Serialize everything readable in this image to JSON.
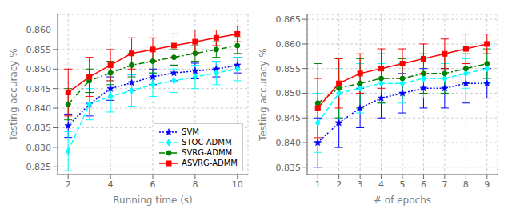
{
  "chart_data": [
    {
      "type": "line",
      "xlabel": "Running time (s)",
      "ylabel": "Testing accuracy %",
      "xlim": [
        1.5,
        10.5
      ],
      "ylim": [
        0.823,
        0.864
      ],
      "xticks": [
        2,
        4,
        6,
        8,
        10
      ],
      "yticks": [
        0.825,
        {
          "value": 0.83,
          "label": "0.830"
        },
        0.835,
        {
          "value": 0.84,
          "label": "0.840"
        },
        0.845,
        {
          "value": 0.85,
          "label": "0.850"
        },
        0.855,
        {
          "value": 0.86,
          "label": "0.860"
        }
      ],
      "grid": true,
      "legend": "lower right",
      "x": [
        2,
        3,
        4,
        5,
        6,
        7,
        8,
        9,
        10
      ],
      "series": [
        {
          "name": "SVM",
          "color": "blue",
          "line_style": "dotted",
          "marker": "star",
          "values": [
            0.8355,
            0.841,
            0.845,
            0.8465,
            0.848,
            0.849,
            0.8495,
            0.85,
            0.851
          ],
          "yerr": [
            0.003,
            0.003,
            0.003,
            0.002,
            0.002,
            0.002,
            0.002,
            0.002,
            0.002
          ]
        },
        {
          "name": "STOC-ADMM",
          "color": "cyan",
          "line_style": "dashed",
          "marker": "diamond",
          "values": [
            0.829,
            0.841,
            0.843,
            0.8445,
            0.846,
            0.847,
            0.848,
            0.849,
            0.85
          ],
          "yerr": [
            0.005,
            0.004,
            0.004,
            0.004,
            0.003,
            0.003,
            0.003,
            0.003,
            0.003
          ]
        },
        {
          "name": "SVRG-ADMM",
          "color": "green",
          "line_style": "dashdot",
          "marker": "circle",
          "values": [
            0.841,
            0.847,
            0.849,
            0.851,
            0.852,
            0.853,
            0.854,
            0.855,
            0.856
          ],
          "yerr": [
            0.004,
            0.003,
            0.003,
            0.003,
            0.003,
            0.002,
            0.002,
            0.002,
            0.002
          ]
        },
        {
          "name": "ASVRG-ADMM",
          "color": "red",
          "line_style": "solid",
          "marker": "square",
          "values": [
            0.844,
            0.848,
            0.851,
            0.854,
            0.855,
            0.856,
            0.857,
            0.858,
            0.859
          ],
          "yerr": [
            0.006,
            0.005,
            0.004,
            0.004,
            0.003,
            0.003,
            0.003,
            0.002,
            0.002
          ]
        }
      ]
    },
    {
      "type": "line",
      "xlabel": "# of epochs",
      "ylabel": "Testing accuracy %",
      "xlim": [
        0.5,
        9.5
      ],
      "ylim": [
        0.8335,
        0.866
      ],
      "xticks": [
        1,
        2,
        3,
        4,
        5,
        6,
        7,
        8,
        9
      ],
      "yticks": [
        0.835,
        {
          "value": 0.84,
          "label": "0.840"
        },
        0.845,
        {
          "value": 0.85,
          "label": "0.850"
        },
        0.855,
        {
          "value": 0.86,
          "label": "0.860"
        },
        0.865
      ],
      "grid": true,
      "x": [
        1,
        2,
        3,
        4,
        5,
        6,
        7,
        8,
        9
      ],
      "series": [
        {
          "name": "SVM",
          "color": "blue",
          "line_style": "dotted",
          "marker": "star",
          "values": [
            0.84,
            0.844,
            0.847,
            0.849,
            0.85,
            0.851,
            0.851,
            0.852,
            0.852
          ],
          "yerr": [
            0.005,
            0.005,
            0.004,
            0.004,
            0.004,
            0.004,
            0.004,
            0.004,
            0.003
          ]
        },
        {
          "name": "STOC-ADMM",
          "color": "cyan",
          "line_style": "dashed",
          "marker": "diamond",
          "values": [
            0.844,
            0.85,
            0.851,
            0.852,
            0.852,
            0.853,
            0.853,
            0.854,
            0.855
          ],
          "yerr": [
            0.006,
            0.005,
            0.005,
            0.004,
            0.004,
            0.004,
            0.003,
            0.003,
            0.003
          ]
        },
        {
          "name": "SVRG-ADMM",
          "color": "green",
          "line_style": "dashdot",
          "marker": "circle",
          "values": [
            0.848,
            0.851,
            0.852,
            0.853,
            0.853,
            0.854,
            0.854,
            0.855,
            0.856
          ],
          "yerr": [
            0.008,
            0.006,
            0.005,
            0.005,
            0.004,
            0.004,
            0.004,
            0.003,
            0.003
          ]
        },
        {
          "name": "ASVRG-ADMM",
          "color": "red",
          "line_style": "solid",
          "marker": "square",
          "values": [
            0.847,
            0.852,
            0.854,
            0.855,
            0.856,
            0.857,
            0.858,
            0.859,
            0.86
          ],
          "yerr": [
            0.006,
            0.005,
            0.004,
            0.004,
            0.003,
            0.003,
            0.003,
            0.003,
            0.002
          ]
        }
      ]
    }
  ]
}
